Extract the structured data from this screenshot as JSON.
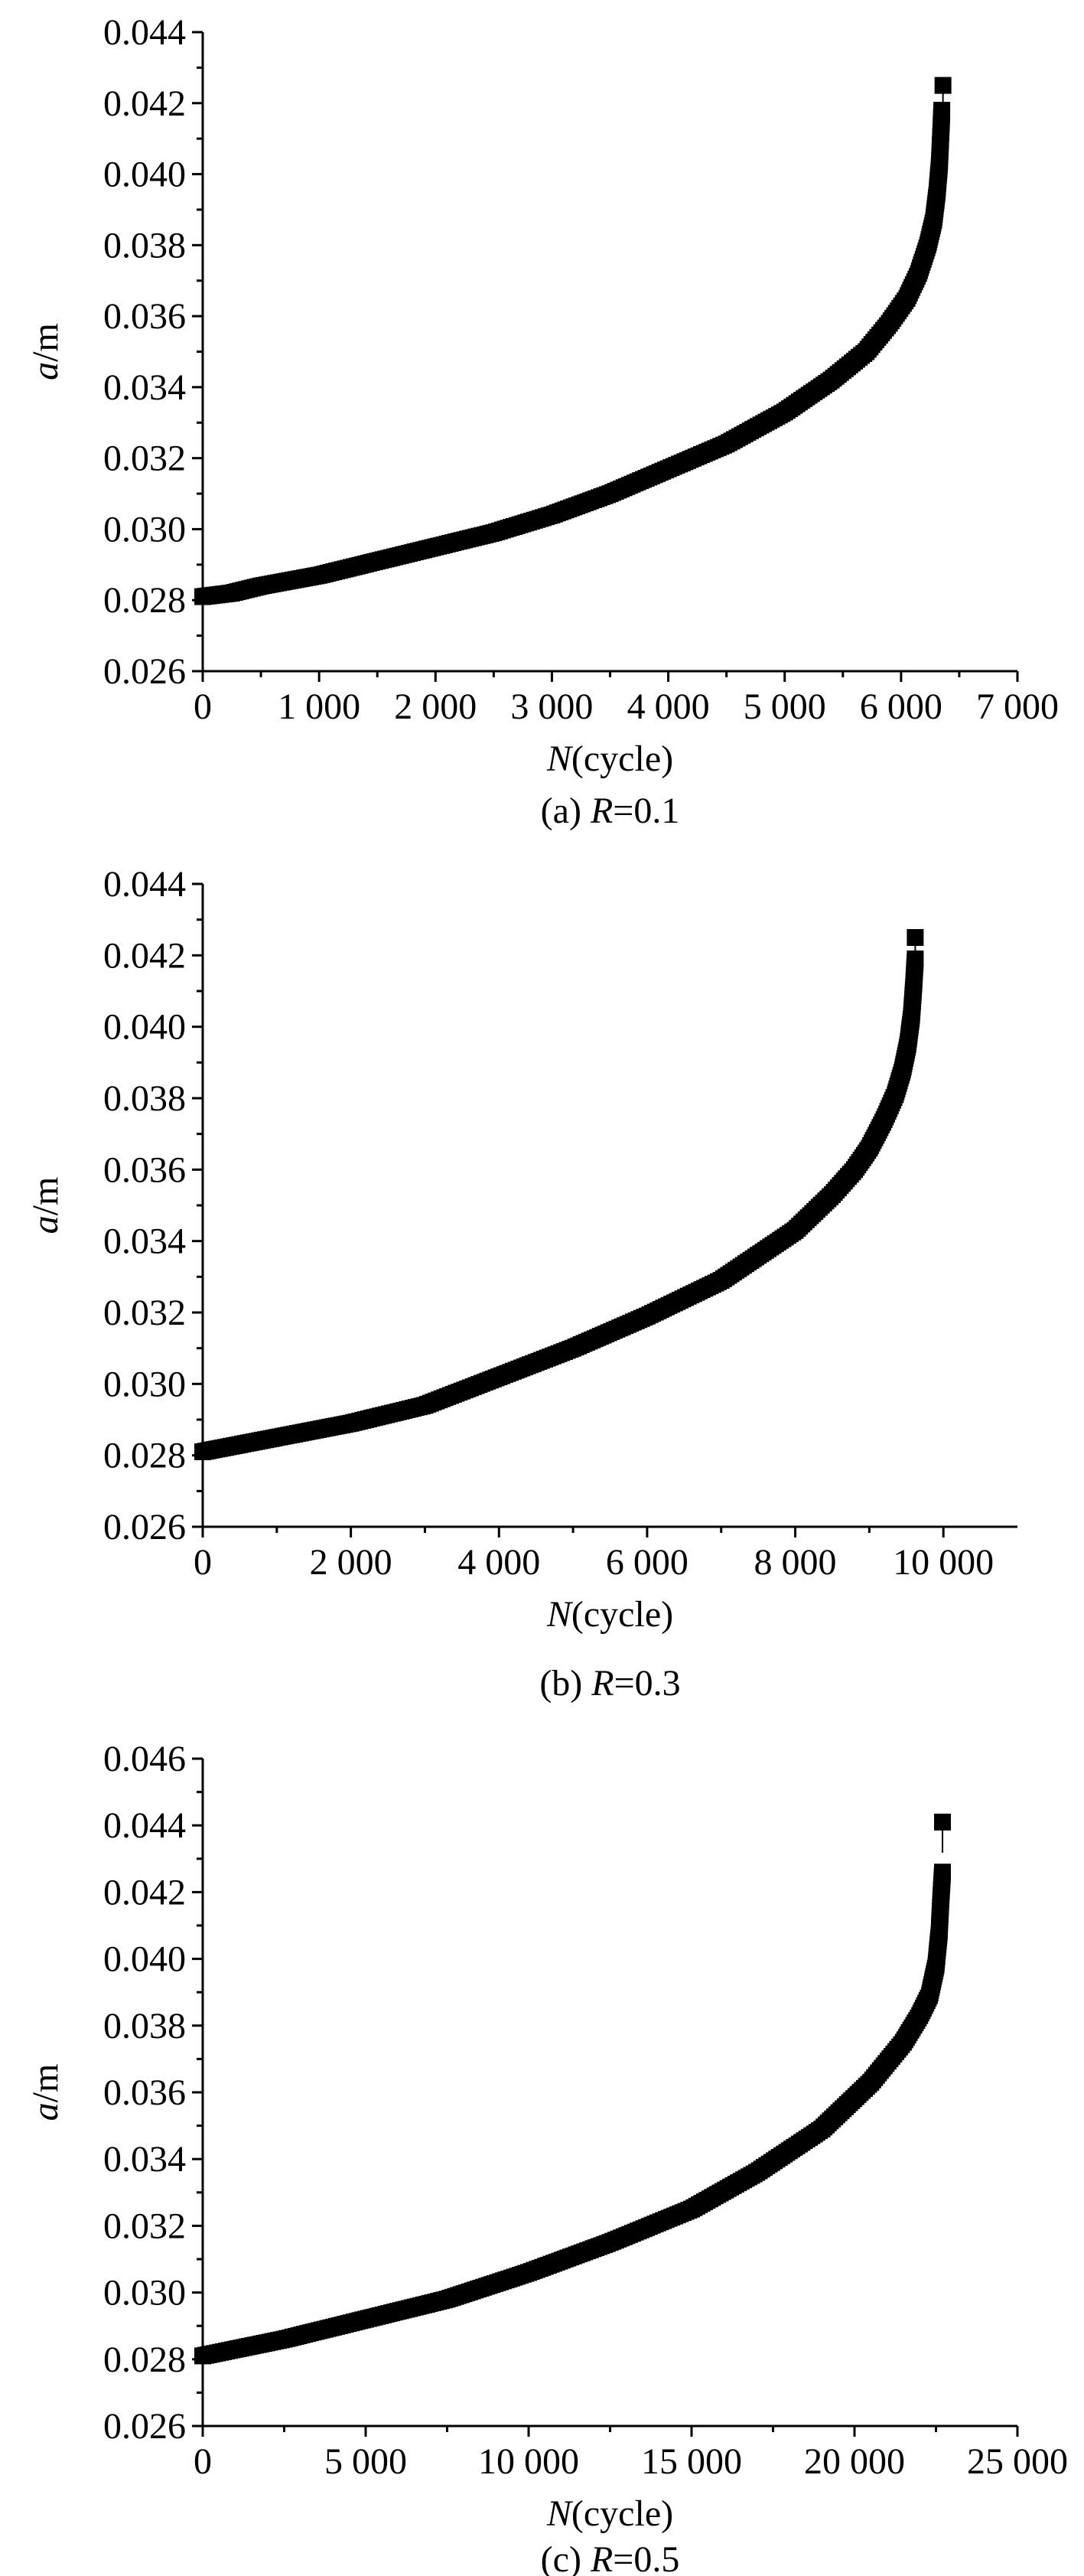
{
  "chart_data": [
    {
      "type": "scatter",
      "caption_prefix": "(a) ",
      "caption_var": "R",
      "caption_suffix": "=0.1",
      "xlabel_var": "N",
      "xlabel_unit": "(cycle)",
      "ylabel_var": "a",
      "ylabel_unit": "/m",
      "xlim": [
        0,
        7000
      ],
      "ylim": [
        0.026,
        0.044
      ],
      "xticks": [
        0,
        1000,
        2000,
        3000,
        4000,
        5000,
        6000,
        7000
      ],
      "xtick_labels": [
        "0",
        "1 000",
        "2 000",
        "3 000",
        "4 000",
        "5 000",
        "6 000",
        "7 000"
      ],
      "yticks": [
        0.026,
        0.028,
        0.03,
        0.032,
        0.034,
        0.036,
        0.038,
        0.04,
        0.042,
        0.044
      ],
      "ytick_labels": [
        "0.026",
        "0.028",
        "0.030",
        "0.032",
        "0.034",
        "0.036",
        "0.038",
        "0.040",
        "0.042",
        "0.044"
      ],
      "series": [
        {
          "x": [
            0,
            250,
            500,
            1000,
            1500,
            2000,
            2500,
            3000,
            3500,
            4000,
            4500,
            5000,
            5400,
            5700,
            5900,
            6050,
            6150,
            6230,
            6280,
            6310,
            6330,
            6345,
            6350
          ],
          "y": [
            0.0281,
            0.0282,
            0.0284,
            0.0287,
            0.0291,
            0.0295,
            0.0299,
            0.0304,
            0.031,
            0.0317,
            0.0324,
            0.0333,
            0.0342,
            0.035,
            0.0358,
            0.0365,
            0.0372,
            0.038,
            0.0387,
            0.0395,
            0.0403,
            0.0414,
            0.0418
          ]
        }
      ],
      "outliers": [
        {
          "x": 6360,
          "y": 0.0425
        }
      ]
    },
    {
      "type": "scatter",
      "caption_prefix": "(b) ",
      "caption_var": "R",
      "caption_suffix": "=0.3",
      "xlabel_var": "N",
      "xlabel_unit": "(cycle)",
      "ylabel_var": "a",
      "ylabel_unit": "/m",
      "xlim": [
        0,
        11000
      ],
      "ylim": [
        0.026,
        0.044
      ],
      "xticks": [
        0,
        2000,
        4000,
        6000,
        8000,
        10000
      ],
      "xtick_labels": [
        "0",
        "2 000",
        "4 000",
        "6 000",
        "8 000",
        "10 000"
      ],
      "yticks": [
        0.026,
        0.028,
        0.03,
        0.032,
        0.034,
        0.036,
        0.038,
        0.04,
        0.042,
        0.044
      ],
      "ytick_labels": [
        "0.026",
        "0.028",
        "0.030",
        "0.032",
        "0.034",
        "0.036",
        "0.038",
        "0.040",
        "0.042",
        "0.044"
      ],
      "series": [
        {
          "x": [
            0,
            500,
            1000,
            2000,
            3000,
            4000,
            5000,
            6000,
            7000,
            7500,
            8000,
            8500,
            8800,
            9000,
            9200,
            9350,
            9450,
            9520,
            9570,
            9600,
            9620
          ],
          "y": [
            0.0281,
            0.0283,
            0.0285,
            0.0289,
            0.0294,
            0.0302,
            0.031,
            0.0319,
            0.0329,
            0.0336,
            0.0343,
            0.0353,
            0.036,
            0.0366,
            0.0374,
            0.0381,
            0.0388,
            0.0395,
            0.0403,
            0.0412,
            0.0419
          ]
        }
      ],
      "outliers": [
        {
          "x": 9620,
          "y": 0.0425
        }
      ]
    },
    {
      "type": "scatter",
      "caption_prefix": "(c) ",
      "caption_var": "R",
      "caption_suffix": "=0.5",
      "xlabel_var": "N",
      "xlabel_unit": "(cycle)",
      "ylabel_var": "a",
      "ylabel_unit": "/m",
      "xlim": [
        0,
        25000
      ],
      "ylim": [
        0.026,
        0.046
      ],
      "xticks": [
        0,
        5000,
        10000,
        15000,
        20000,
        25000
      ],
      "xtick_labels": [
        "0",
        "5 000",
        "10 000",
        "15 000",
        "20 000",
        "25 000"
      ],
      "yticks": [
        0.026,
        0.028,
        0.03,
        0.032,
        0.034,
        0.036,
        0.038,
        0.04,
        0.042,
        0.044,
        0.046
      ],
      "ytick_labels": [
        "0.026",
        "0.028",
        "0.030",
        "0.032",
        "0.034",
        "0.036",
        "0.038",
        "0.040",
        "0.042",
        "0.044",
        "0.046"
      ],
      "series": [
        {
          "x": [
            0,
            1000,
            2500,
            5000,
            7500,
            10000,
            12500,
            15000,
            17000,
            19000,
            20500,
            21500,
            22000,
            22300,
            22500,
            22600,
            22650,
            22700
          ],
          "y": [
            0.0281,
            0.0283,
            0.0286,
            0.0292,
            0.0298,
            0.0306,
            0.0315,
            0.0325,
            0.0336,
            0.0349,
            0.0363,
            0.0375,
            0.0383,
            0.0389,
            0.0398,
            0.0408,
            0.0418,
            0.0426
          ]
        }
      ],
      "outliers": [
        {
          "x": 22700,
          "y": 0.0441
        }
      ]
    }
  ]
}
